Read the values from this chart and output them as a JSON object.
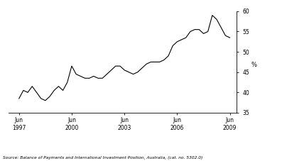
{
  "title": "",
  "ylabel": "%",
  "source_text": "Source: Balance of Payments and International Investment Position, Australia, (cat. no. 5302.0)",
  "xlim_start": 1996.9,
  "xlim_end": 2009.9,
  "ylim": [
    35,
    60
  ],
  "yticks": [
    35,
    40,
    45,
    50,
    55,
    60
  ],
  "xtick_positions": [
    1997.5,
    2000.5,
    2003.5,
    2006.5,
    2009.5
  ],
  "xtick_labels": [
    "Jun\n1997",
    "Jun\n2000",
    "Jun\n2003",
    "Jun\n2006",
    "Jun\n2009"
  ],
  "line_color": "#000000",
  "line_width": 0.8,
  "background_color": "#ffffff",
  "data": {
    "years": [
      1997.5,
      1997.75,
      1998.0,
      1998.25,
      1998.5,
      1998.75,
      1999.0,
      1999.25,
      1999.5,
      1999.75,
      2000.0,
      2000.25,
      2000.5,
      2000.75,
      2001.0,
      2001.25,
      2001.5,
      2001.75,
      2002.0,
      2002.25,
      2002.5,
      2002.75,
      2003.0,
      2003.25,
      2003.5,
      2003.75,
      2004.0,
      2004.25,
      2004.5,
      2004.75,
      2005.0,
      2005.25,
      2005.5,
      2005.75,
      2006.0,
      2006.25,
      2006.5,
      2006.75,
      2007.0,
      2007.25,
      2007.5,
      2007.75,
      2008.0,
      2008.25,
      2008.5,
      2008.75,
      2009.0,
      2009.25,
      2009.5
    ],
    "values": [
      38.5,
      40.5,
      40.0,
      41.5,
      40.0,
      38.5,
      38.0,
      39.0,
      40.5,
      41.5,
      40.5,
      42.5,
      46.5,
      44.5,
      44.0,
      43.5,
      43.5,
      44.0,
      43.5,
      43.5,
      44.5,
      45.5,
      46.5,
      46.5,
      45.5,
      45.0,
      44.5,
      45.0,
      46.0,
      47.0,
      47.5,
      47.5,
      47.5,
      48.0,
      49.0,
      51.5,
      52.5,
      53.0,
      53.5,
      55.0,
      55.5,
      55.5,
      54.5,
      55.0,
      59.0,
      58.0,
      56.0,
      54.0,
      53.5
    ]
  }
}
